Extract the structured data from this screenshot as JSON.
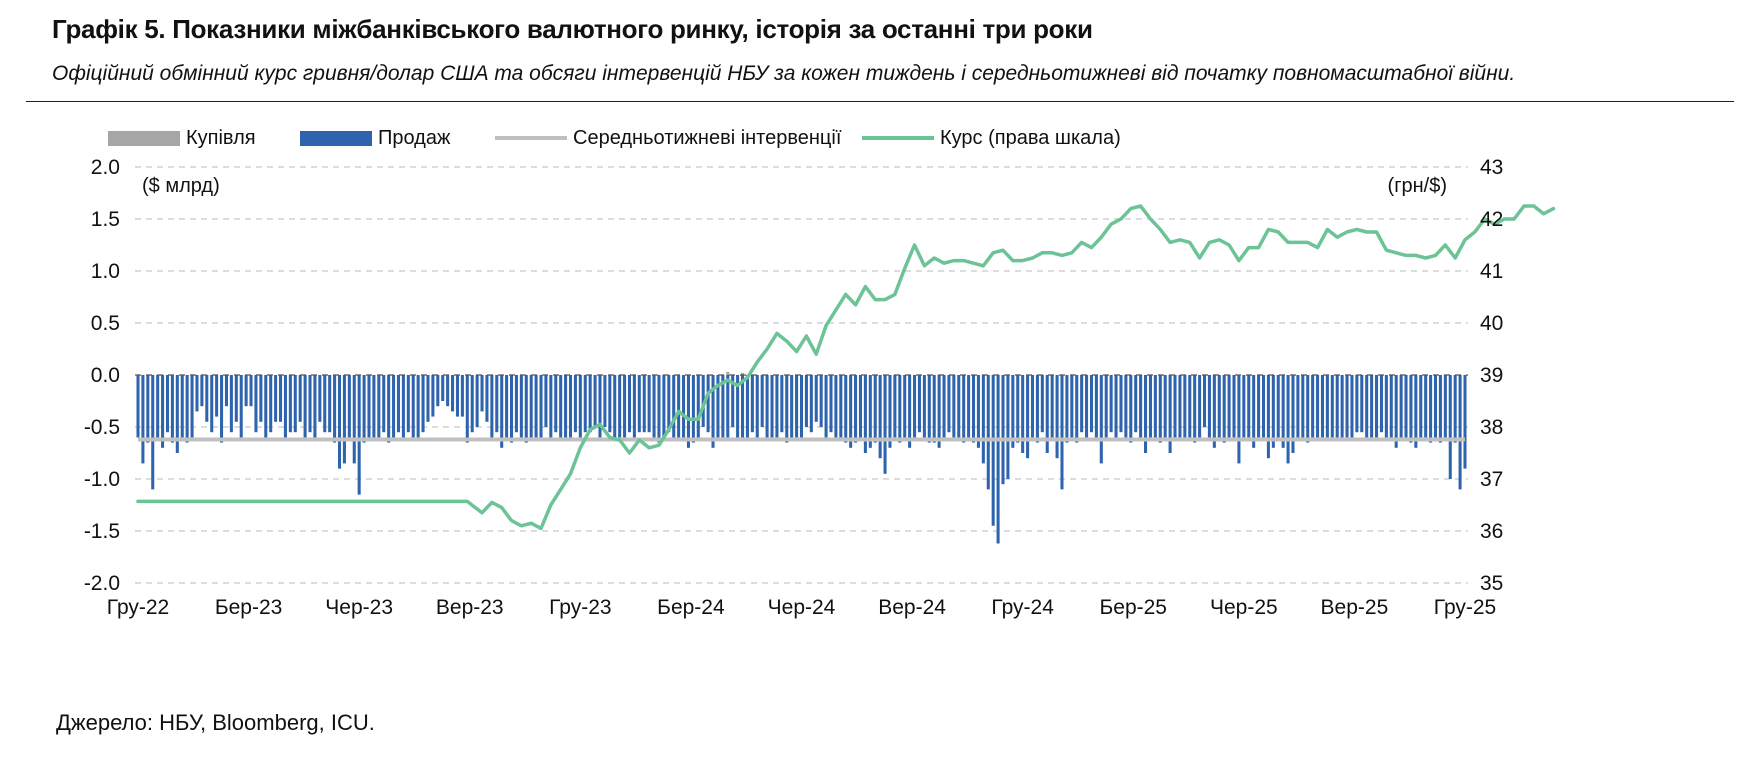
{
  "title": "Графік 5. Показники міжбанківського валютного ринку, історія за останні три роки",
  "subtitle": "Офіційний обмінний курс гривня/долар США та обсяги інтервенцій НБУ за кожен тиждень і середньотижневі від початку повномасштабної війни.",
  "source": "Джерело: НБУ, Bloomberg, ICU.",
  "legend": [
    {
      "label": "Купівля",
      "kind": "bar",
      "color": "#a6a6a6"
    },
    {
      "label": "Продаж",
      "kind": "bar",
      "color": "#2e63ad"
    },
    {
      "label": "Середньотижневі інтервенції",
      "kind": "line",
      "color": "#c0c0c0"
    },
    {
      "label": "Курс (права шкала)",
      "kind": "line",
      "color": "#6cc395"
    }
  ],
  "chart_data": {
    "type": "bar",
    "left_axis_unit": "($ млрд)",
    "right_axis_unit": "(грн/$)",
    "left_ylim": [
      -2.0,
      2.0
    ],
    "left_ticks": [
      "2.0",
      "1.5",
      "1.0",
      "0.5",
      "0.0",
      "-0.5",
      "-1.0",
      "-1.5",
      "-2.0"
    ],
    "right_ylim": [
      35,
      43
    ],
    "right_ticks": [
      "43",
      "42",
      "41",
      "40",
      "39",
      "38",
      "37",
      "36",
      "35"
    ],
    "x_ticks": [
      "Гру-22",
      "Бер-23",
      "Чер-23",
      "Вер-23",
      "Гру-23",
      "Бер-24",
      "Чер-24",
      "Вер-24",
      "Гру-24",
      "Бер-25",
      "Чер-25",
      "Вер-25",
      "Гру-25"
    ],
    "grid": true,
    "average_intervention": -0.62,
    "sales": [
      -0.6,
      -0.85,
      -0.65,
      -1.1,
      -0.6,
      -0.7,
      -0.55,
      -0.65,
      -0.75,
      -0.6,
      -0.65,
      -0.6,
      -0.35,
      -0.3,
      -0.45,
      -0.55,
      -0.4,
      -0.65,
      -0.3,
      -0.55,
      -0.45,
      -0.6,
      -0.3,
      -0.3,
      -0.55,
      -0.45,
      -0.6,
      -0.55,
      -0.45,
      -0.45,
      -0.6,
      -0.55,
      -0.55,
      -0.45,
      -0.6,
      -0.55,
      -0.6,
      -0.45,
      -0.55,
      -0.55,
      -0.65,
      -0.9,
      -0.85,
      -0.6,
      -0.85,
      -1.15,
      -0.65,
      -0.6,
      -0.6,
      -0.6,
      -0.55,
      -0.65,
      -0.6,
      -0.55,
      -0.6,
      -0.55,
      -0.6,
      -0.6,
      -0.55,
      -0.45,
      -0.4,
      -0.3,
      -0.25,
      -0.3,
      -0.35,
      -0.4,
      -0.4,
      -0.65,
      -0.55,
      -0.5,
      -0.35,
      -0.45,
      -0.6,
      -0.55,
      -0.7,
      -0.6,
      -0.65,
      -0.55,
      -0.6,
      -0.65,
      -0.6,
      -0.6,
      -0.6,
      -0.5,
      -0.6,
      -0.55,
      -0.6,
      -0.6,
      -0.6,
      -0.55,
      -0.6,
      -0.55,
      -0.55,
      -0.5,
      -0.6,
      -0.5,
      -0.55,
      -0.6,
      -0.6,
      -0.6,
      -0.55,
      -0.6,
      -0.55,
      -0.55,
      -0.55,
      -0.6,
      -0.65,
      -0.6,
      -0.55,
      -0.6,
      -0.6,
      -0.6,
      -0.7,
      -0.65,
      -0.6,
      -0.5,
      -0.55,
      -0.7,
      -0.6,
      -0.6,
      -0.6,
      -0.5,
      -0.6,
      -0.6,
      -0.6,
      -0.55,
      -0.6,
      -0.5,
      -0.6,
      -0.6,
      -0.6,
      -0.55,
      -0.65,
      -0.6,
      -0.6,
      -0.6,
      -0.5,
      -0.55,
      -0.45,
      -0.5,
      -0.6,
      -0.55,
      -0.6,
      -0.6,
      -0.65,
      -0.7,
      -0.65,
      -0.6,
      -0.75,
      -0.7,
      -0.65,
      -0.8,
      -0.95,
      -0.7,
      -0.6,
      -0.65,
      -0.6,
      -0.7,
      -0.6,
      -0.55,
      -0.6,
      -0.65,
      -0.65,
      -0.7,
      -0.6,
      -0.55,
      -0.6,
      -0.6,
      -0.65,
      -0.6,
      -0.65,
      -0.7,
      -0.85,
      -1.1,
      -1.45,
      -1.62,
      -1.05,
      -1.0,
      -0.7,
      -0.65,
      -0.75,
      -0.8,
      -0.6,
      -0.65,
      -0.55,
      -0.75,
      -0.6,
      -0.8,
      -1.1,
      -0.65,
      -0.6,
      -0.65,
      -0.55,
      -0.6,
      -0.55,
      -0.6,
      -0.85,
      -0.6,
      -0.55,
      -0.6,
      -0.55,
      -0.6,
      -0.65,
      -0.55,
      -0.6,
      -0.75,
      -0.6,
      -0.6,
      -0.65,
      -0.6,
      -0.75,
      -0.6,
      -0.6,
      -0.6,
      -0.6,
      -0.65,
      -0.6,
      -0.5,
      -0.6,
      -0.7,
      -0.6,
      -0.65,
      -0.6,
      -0.6,
      -0.85,
      -0.6,
      -0.6,
      -0.7,
      -0.6,
      -0.6,
      -0.8,
      -0.7,
      -0.6,
      -0.7,
      -0.85,
      -0.75,
      -0.6,
      -0.6,
      -0.65,
      -0.6,
      -0.6,
      -0.6,
      -0.6,
      -0.6,
      -0.6,
      -0.6,
      -0.6,
      -0.6,
      -0.55,
      -0.55,
      -0.6,
      -0.6,
      -0.6,
      -0.55,
      -0.6,
      -0.6,
      -0.7,
      -0.6,
      -0.6,
      -0.65,
      -0.7,
      -0.6,
      -0.6,
      -0.65,
      -0.6,
      -0.65,
      -0.6,
      -1.0,
      -0.65,
      -1.1,
      -0.9
    ],
    "purchases_weeks": [
      [
        120,
        0.03
      ],
      [
        123,
        0.02
      ]
    ],
    "exchange_rate": [
      [
        0,
        36.57
      ],
      [
        67,
        36.57
      ],
      [
        70,
        36.35
      ],
      [
        72,
        36.55
      ],
      [
        74,
        36.45
      ],
      [
        76,
        36.2
      ],
      [
        78,
        36.1
      ],
      [
        80,
        36.15
      ],
      [
        82,
        36.05
      ],
      [
        84,
        36.5
      ],
      [
        86,
        36.8
      ],
      [
        88,
        37.1
      ],
      [
        90,
        37.6
      ],
      [
        92,
        37.95
      ],
      [
        94,
        38.05
      ],
      [
        96,
        37.8
      ],
      [
        98,
        37.75
      ],
      [
        100,
        37.5
      ],
      [
        102,
        37.75
      ],
      [
        104,
        37.6
      ],
      [
        106,
        37.65
      ],
      [
        108,
        37.95
      ],
      [
        110,
        38.3
      ],
      [
        112,
        38.15
      ],
      [
        114,
        38.15
      ],
      [
        116,
        38.65
      ],
      [
        118,
        38.8
      ],
      [
        120,
        38.9
      ],
      [
        122,
        38.8
      ],
      [
        124,
        38.95
      ],
      [
        126,
        39.25
      ],
      [
        128,
        39.5
      ],
      [
        130,
        39.8
      ],
      [
        132,
        39.65
      ],
      [
        134,
        39.45
      ],
      [
        136,
        39.75
      ],
      [
        138,
        39.4
      ],
      [
        140,
        39.95
      ],
      [
        142,
        40.25
      ],
      [
        144,
        40.55
      ],
      [
        146,
        40.35
      ],
      [
        148,
        40.7
      ],
      [
        150,
        40.45
      ],
      [
        152,
        40.45
      ],
      [
        154,
        40.55
      ],
      [
        156,
        41.05
      ],
      [
        158,
        41.5
      ],
      [
        160,
        41.1
      ],
      [
        162,
        41.25
      ],
      [
        164,
        41.15
      ],
      [
        166,
        41.2
      ],
      [
        168,
        41.2
      ],
      [
        170,
        41.15
      ],
      [
        172,
        41.1
      ],
      [
        174,
        41.35
      ],
      [
        176,
        41.4
      ],
      [
        178,
        41.2
      ],
      [
        180,
        41.2
      ],
      [
        182,
        41.25
      ],
      [
        184,
        41.35
      ],
      [
        186,
        41.35
      ],
      [
        188,
        41.3
      ],
      [
        190,
        41.35
      ],
      [
        192,
        41.55
      ],
      [
        194,
        41.45
      ],
      [
        196,
        41.65
      ],
      [
        198,
        41.9
      ],
      [
        200,
        42.0
      ],
      [
        202,
        42.2
      ],
      [
        204,
        42.25
      ],
      [
        206,
        42.0
      ],
      [
        208,
        41.8
      ],
      [
        210,
        41.55
      ],
      [
        212,
        41.6
      ],
      [
        214,
        41.55
      ],
      [
        216,
        41.25
      ],
      [
        218,
        41.55
      ],
      [
        220,
        41.6
      ],
      [
        222,
        41.5
      ],
      [
        224,
        41.2
      ],
      [
        226,
        41.45
      ],
      [
        228,
        41.45
      ],
      [
        230,
        41.8
      ],
      [
        232,
        41.75
      ],
      [
        234,
        41.55
      ],
      [
        236,
        41.55
      ],
      [
        238,
        41.55
      ],
      [
        240,
        41.45
      ],
      [
        242,
        41.8
      ],
      [
        244,
        41.65
      ],
      [
        246,
        41.75
      ],
      [
        248,
        41.8
      ],
      [
        250,
        41.75
      ],
      [
        252,
        41.75
      ],
      [
        254,
        41.4
      ],
      [
        256,
        41.35
      ],
      [
        258,
        41.3
      ],
      [
        260,
        41.3
      ],
      [
        262,
        41.25
      ],
      [
        264,
        41.3
      ],
      [
        266,
        41.5
      ],
      [
        268,
        41.25
      ],
      [
        270,
        41.6
      ],
      [
        272,
        41.75
      ],
      [
        274,
        42.0
      ],
      [
        276,
        41.9
      ],
      [
        278,
        42.0
      ],
      [
        280,
        42.0
      ],
      [
        282,
        42.25
      ],
      [
        284,
        42.25
      ],
      [
        286,
        42.1
      ],
      [
        288,
        42.2
      ]
    ]
  }
}
